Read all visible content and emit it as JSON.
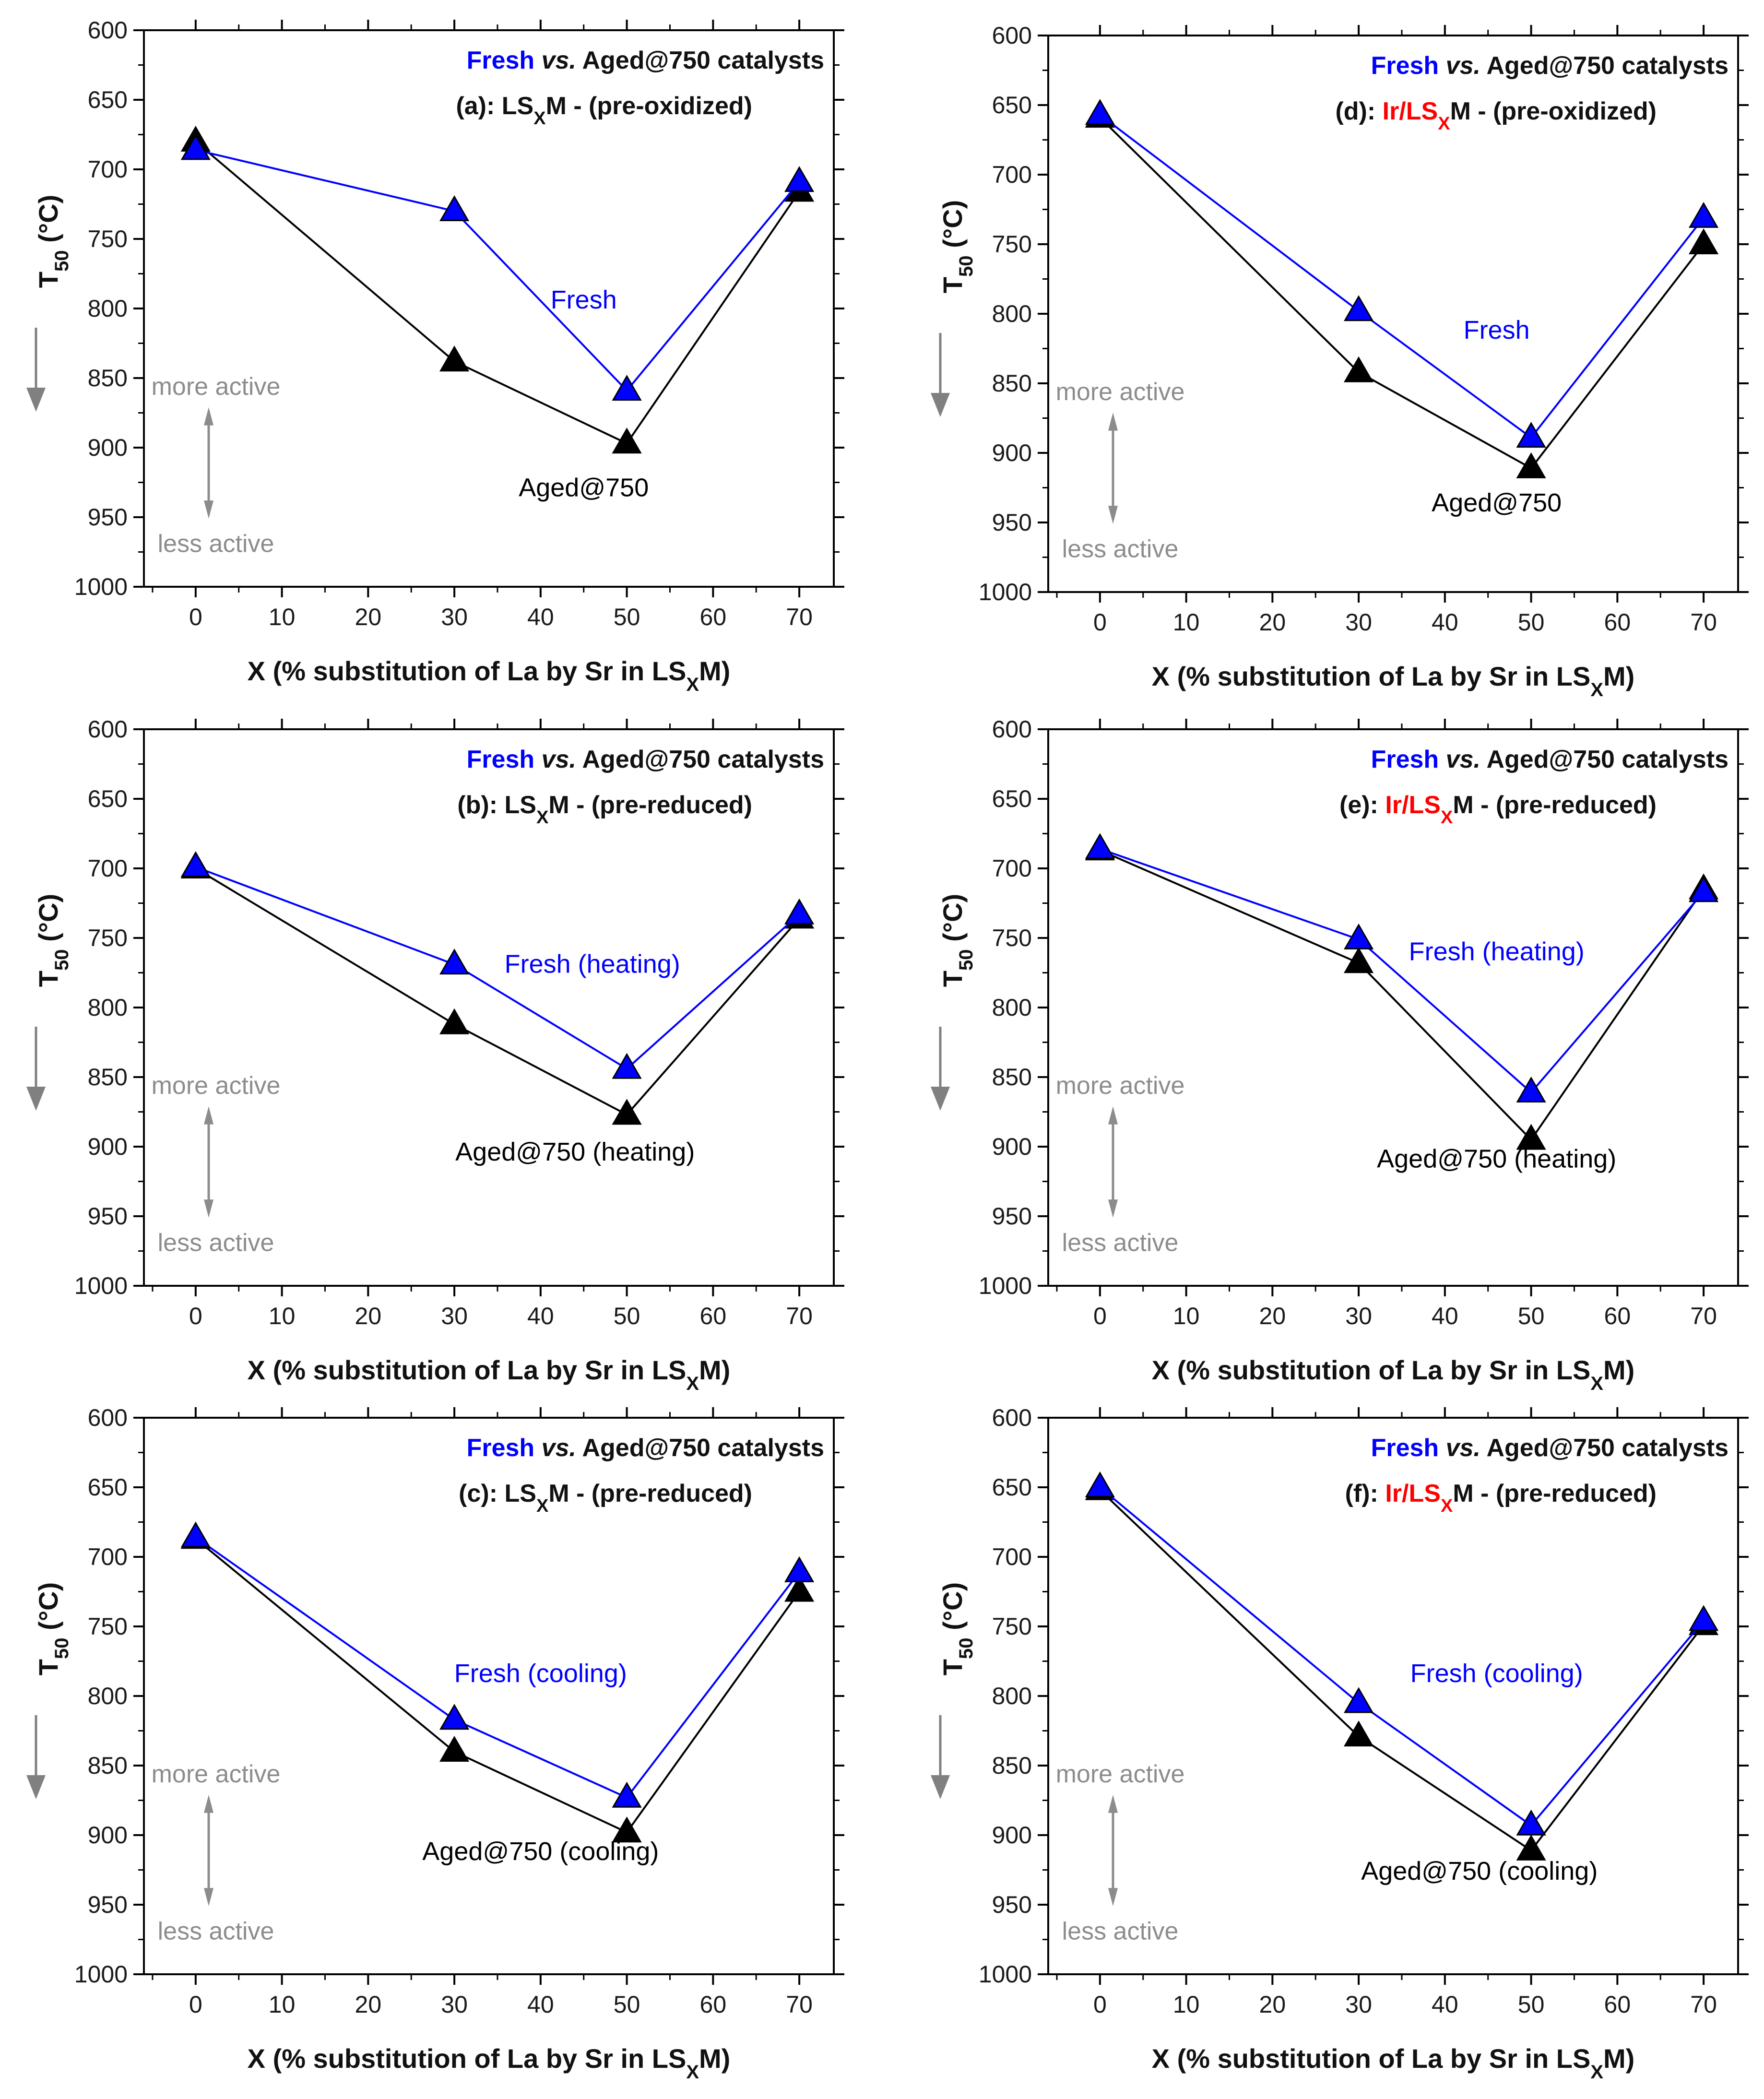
{
  "colors": {
    "fresh": "#0000ff",
    "aged": "#000000",
    "ir": "#ff0000",
    "hint": "#8c8c8c"
  },
  "chart_data": [
    {
      "id": "a",
      "type": "line",
      "x": [
        0,
        30,
        50,
        70
      ],
      "series": [
        {
          "name": "Fresh",
          "values": [
            686,
            730,
            859,
            709
          ],
          "color": "#0000ff",
          "label_pos": [
            45,
            800
          ]
        },
        {
          "name": "Aged@750",
          "values": [
            680,
            838,
            897,
            716
          ],
          "color": "#000000",
          "label_pos": [
            45,
            935
          ]
        }
      ],
      "legend": {
        "fresh": "Fresh",
        "vs": "vs.",
        "rest": "Aged@750 catalysts"
      },
      "subtitle": {
        "prefix": "(a): ",
        "main": "LS",
        "sub": "X",
        "tail": "M - (pre-oxidized)",
        "ir": ""
      },
      "hints": {
        "more": "more active",
        "less": "less active"
      },
      "xlabel": {
        "main": "X (% substitution of La by Sr in LS",
        "sub": "X",
        "tail": "M)"
      },
      "ylabel": {
        "main": "T",
        "sub": "50",
        "tail": " (°C)"
      },
      "xlim": [
        -6,
        74
      ],
      "ylim": [
        600,
        1000
      ],
      "y_inverted": true,
      "xticks": [
        "0",
        "10",
        "20",
        "30",
        "40",
        "50",
        "60",
        "70"
      ],
      "yticks": [
        "600",
        "650",
        "700",
        "750",
        "800",
        "850",
        "900",
        "950",
        "1000"
      ]
    },
    {
      "id": "d",
      "type": "line",
      "x": [
        0,
        30,
        50,
        70
      ],
      "series": [
        {
          "name": "Fresh",
          "values": [
            657,
            798,
            889,
            731
          ],
          "color": "#0000ff",
          "label_pos": [
            46,
            818
          ]
        },
        {
          "name": "Aged@750",
          "values": [
            659,
            842,
            911,
            750
          ],
          "color": "#000000",
          "label_pos": [
            46,
            942
          ]
        }
      ],
      "legend": {
        "fresh": "Fresh",
        "vs": "vs.",
        "rest": "Aged@750 catalysts"
      },
      "subtitle": {
        "prefix": "(d): ",
        "main": "LS",
        "sub": "X",
        "tail": "M - (pre-oxidized)",
        "ir": "Ir/"
      },
      "hints": {
        "more": "more active",
        "less": "less active"
      },
      "xlabel": {
        "main": "X (% substitution of La by Sr in LS",
        "sub": "X",
        "tail": "M)"
      },
      "ylabel": {
        "main": "T",
        "sub": "50",
        "tail": " (°C)"
      },
      "xlim": [
        -6,
        74
      ],
      "ylim": [
        600,
        1000
      ],
      "y_inverted": true,
      "xticks": [
        "0",
        "10",
        "20",
        "30",
        "40",
        "50",
        "60",
        "70"
      ],
      "yticks": [
        "600",
        "650",
        "700",
        "750",
        "800",
        "850",
        "900",
        "950",
        "1000"
      ]
    },
    {
      "id": "b",
      "type": "line",
      "x": [
        0,
        30,
        50,
        70
      ],
      "series": [
        {
          "name": "Fresh (heating)",
          "values": [
            699,
            769,
            844,
            733
          ],
          "color": "#0000ff",
          "label_pos": [
            46,
            775
          ]
        },
        {
          "name": "Aged@750 (heating)",
          "values": [
            700,
            812,
            877,
            736
          ],
          "color": "#000000",
          "label_pos": [
            44,
            910
          ]
        }
      ],
      "legend": {
        "fresh": "Fresh",
        "vs": "vs.",
        "rest": "Aged@750 catalysts"
      },
      "subtitle": {
        "prefix": "(b): ",
        "main": "LS",
        "sub": "X",
        "tail": "M - (pre-reduced)",
        "ir": ""
      },
      "hints": {
        "more": "more active",
        "less": "less active"
      },
      "xlabel": {
        "main": "X (% substitution of La by Sr in LS",
        "sub": "X",
        "tail": "M)"
      },
      "ylabel": {
        "main": "T",
        "sub": "50",
        "tail": " (°C)"
      },
      "xlim": [
        -6,
        74
      ],
      "ylim": [
        600,
        1000
      ],
      "y_inverted": true,
      "xticks": [
        "0",
        "10",
        "20",
        "30",
        "40",
        "50",
        "60",
        "70"
      ],
      "yticks": [
        "600",
        "650",
        "700",
        "750",
        "800",
        "850",
        "900",
        "950",
        "1000"
      ]
    },
    {
      "id": "e",
      "type": "line",
      "x": [
        0,
        30,
        50,
        70
      ],
      "series": [
        {
          "name": "Fresh (heating)",
          "values": [
            686,
            751,
            861,
            717
          ],
          "color": "#0000ff",
          "label_pos": [
            46,
            766
          ]
        },
        {
          "name": "Aged@750 (heating)",
          "values": [
            687,
            768,
            895,
            715
          ],
          "color": "#000000",
          "label_pos": [
            46,
            915
          ]
        }
      ],
      "legend": {
        "fresh": "Fresh",
        "vs": "vs.",
        "rest": "Aged@750 catalysts"
      },
      "subtitle": {
        "prefix": "(e): ",
        "main": "LS",
        "sub": "X",
        "tail": "M - (pre-reduced)",
        "ir": "Ir/"
      },
      "hints": {
        "more": "more active",
        "less": "less active"
      },
      "xlabel": {
        "main": "X (% substitution of La by Sr in LS",
        "sub": "X",
        "tail": "M)"
      },
      "ylabel": {
        "main": "T",
        "sub": "50",
        "tail": " (°C)"
      },
      "xlim": [
        -6,
        74
      ],
      "ylim": [
        600,
        1000
      ],
      "y_inverted": true,
      "xticks": [
        "0",
        "10",
        "20",
        "30",
        "40",
        "50",
        "60",
        "70"
      ],
      "yticks": [
        "600",
        "650",
        "700",
        "750",
        "800",
        "850",
        "900",
        "950",
        "1000"
      ]
    },
    {
      "id": "c",
      "type": "line",
      "x": [
        0,
        30,
        50,
        70
      ],
      "series": [
        {
          "name": "Fresh (cooling)",
          "values": [
            686,
            817,
            873,
            711
          ],
          "color": "#0000ff",
          "label_pos": [
            40,
            790
          ]
        },
        {
          "name": "Aged@750 (cooling)",
          "values": [
            687,
            840,
            898,
            725
          ],
          "color": "#000000",
          "label_pos": [
            40,
            918
          ]
        }
      ],
      "legend": {
        "fresh": "Fresh",
        "vs": "vs.",
        "rest": "Aged@750  catalysts"
      },
      "subtitle": {
        "prefix": "(c): ",
        "main": "LS",
        "sub": "X",
        "tail": "M - (pre-reduced)",
        "ir": ""
      },
      "hints": {
        "more": "more active",
        "less": "less active"
      },
      "xlabel": {
        "main": "X (% substitution of La by Sr in LS",
        "sub": "X",
        "tail": "M)"
      },
      "ylabel": {
        "main": "T",
        "sub": "50",
        "tail": " (°C)"
      },
      "xlim": [
        -6,
        74
      ],
      "ylim": [
        600,
        1000
      ],
      "y_inverted": true,
      "xticks": [
        "0",
        "10",
        "20",
        "30",
        "40",
        "50",
        "60",
        "70"
      ],
      "yticks": [
        "600",
        "650",
        "700",
        "750",
        "800",
        "850",
        "900",
        "950",
        "1000"
      ]
    },
    {
      "id": "f",
      "type": "line",
      "x": [
        0,
        30,
        50,
        70
      ],
      "series": [
        {
          "name": "Fresh (cooling)",
          "values": [
            650,
            805,
            893,
            746
          ],
          "color": "#0000ff",
          "label_pos": [
            46,
            790
          ]
        },
        {
          "name": "Aged@750 (cooling)",
          "values": [
            652,
            829,
            911,
            749
          ],
          "color": "#000000",
          "label_pos": [
            44,
            932
          ]
        }
      ],
      "legend": {
        "fresh": "Fresh",
        "vs": "vs.",
        "rest": "Aged@750  catalysts"
      },
      "subtitle": {
        "prefix": "(f): ",
        "main": "LS",
        "sub": "X",
        "tail": "M - (pre-reduced)",
        "ir": "Ir/"
      },
      "hints": {
        "more": "more active",
        "less": "less active"
      },
      "xlabel": {
        "main": "X (% substitution of La by Sr in LS",
        "sub": "X",
        "tail": "M)"
      },
      "ylabel": {
        "main": "T",
        "sub": "50",
        "tail": " (°C)"
      },
      "xlim": [
        -6,
        74
      ],
      "ylim": [
        600,
        1000
      ],
      "y_inverted": true,
      "xticks": [
        "0",
        "10",
        "20",
        "30",
        "40",
        "50",
        "60",
        "70"
      ],
      "yticks": [
        "600",
        "650",
        "700",
        "750",
        "800",
        "850",
        "900",
        "950",
        "1000"
      ]
    }
  ]
}
